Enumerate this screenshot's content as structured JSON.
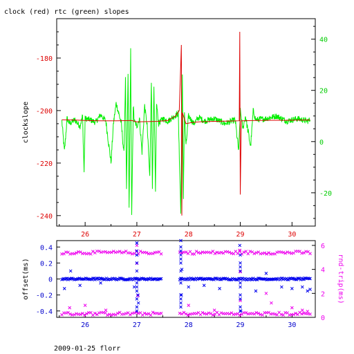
{
  "title": "clock (red) rtc (green) slopes",
  "footer": "2009-01-25 florr",
  "colors": {
    "clock": "#dd0000",
    "rtc": "#00ee00",
    "offset": "#0000ee",
    "rndtrip": "#ee00ee",
    "axis": "#000000",
    "bottom_axis_text": "#0000cc",
    "left_axis_text_top": "#dd0000",
    "right_axis_text_top": "#00cc00"
  },
  "chart_data": [
    {
      "type": "line",
      "title": "clock (red) rtc (green) slopes",
      "xlabel": "",
      "ylabel": "clockslope",
      "y2label": "",
      "xlim": [
        25.45,
        30.45
      ],
      "ylim": [
        -244,
        -165
      ],
      "y2lim": [
        -33,
        48
      ],
      "x_ticks": [
        26,
        27,
        28,
        29,
        30
      ],
      "y_ticks": [
        -240,
        -220,
        -200,
        -180
      ],
      "y2_ticks": [
        -20,
        0,
        20,
        40
      ],
      "series": [
        {
          "axis": "left",
          "color": "#dd0000",
          "points": [
            [
              25.55,
              -203.5
            ],
            [
              25.8,
              -203.6
            ],
            [
              26.0,
              -203.8
            ],
            [
              26.3,
              -203.9
            ],
            [
              26.6,
              -203.9
            ],
            [
              26.9,
              -203.8
            ],
            [
              27.0,
              -204.3
            ],
            [
              27.2,
              -204.2
            ],
            [
              27.4,
              -204.1
            ],
            [
              27.6,
              -203.8
            ],
            [
              27.75,
              -202.0
            ],
            [
              27.82,
              -200.0
            ],
            [
              27.86,
              -175.0
            ],
            [
              27.87,
              -240.0
            ],
            [
              27.88,
              -200.8
            ],
            [
              27.95,
              -205.0
            ],
            [
              28.05,
              -204.6
            ],
            [
              28.2,
              -204.3
            ],
            [
              28.5,
              -204.1
            ],
            [
              28.8,
              -204.0
            ],
            [
              28.98,
              -203.9
            ],
            [
              28.99,
              -170.0
            ],
            [
              29.0,
              -232.0
            ],
            [
              29.02,
              -203.9
            ],
            [
              29.3,
              -203.8
            ],
            [
              29.6,
              -203.7
            ],
            [
              29.9,
              -203.7
            ],
            [
              30.2,
              -203.6
            ],
            [
              30.35,
              -203.6
            ]
          ]
        },
        {
          "axis": "right",
          "color": "#00ee00",
          "points": [
            [
              25.55,
              8.0
            ],
            [
              25.6,
              -4.0
            ],
            [
              25.65,
              9.0
            ],
            [
              25.7,
              7.0
            ],
            [
              25.8,
              8.5
            ],
            [
              25.9,
              6.0
            ],
            [
              25.95,
              10.0
            ],
            [
              25.98,
              -12.0
            ],
            [
              26.0,
              9.0
            ],
            [
              26.1,
              8.5
            ],
            [
              26.2,
              7.5
            ],
            [
              26.3,
              10.5
            ],
            [
              26.4,
              8.0
            ],
            [
              26.5,
              -8.0
            ],
            [
              26.55,
              7.5
            ],
            [
              26.6,
              15.0
            ],
            [
              26.7,
              7.0
            ],
            [
              26.75,
              -5.0
            ],
            [
              26.78,
              24.0
            ],
            [
              26.8,
              -20.0
            ],
            [
              26.83,
              27.0
            ],
            [
              26.85,
              -26.0
            ],
            [
              26.88,
              36.0
            ],
            [
              26.9,
              -30.0
            ],
            [
              26.93,
              14.0
            ],
            [
              26.95,
              8.0
            ],
            [
              27.0,
              6.0
            ],
            [
              27.05,
              9.0
            ],
            [
              27.1,
              -4.0
            ],
            [
              27.15,
              14.0
            ],
            [
              27.2,
              6.0
            ],
            [
              27.25,
              -14.0
            ],
            [
              27.28,
              24.0
            ],
            [
              27.3,
              -17.0
            ],
            [
              27.33,
              20.0
            ],
            [
              27.36,
              -20.0
            ],
            [
              27.38,
              15.0
            ],
            [
              27.42,
              7.0
            ],
            [
              27.5,
              9.0
            ],
            [
              27.6,
              8.0
            ],
            [
              27.7,
              9.5
            ],
            [
              27.8,
              11.0
            ],
            [
              27.85,
              -28.0
            ],
            [
              27.88,
              26.0
            ],
            [
              27.9,
              -22.0
            ],
            [
              27.92,
              12.0
            ],
            [
              27.95,
              -2.0
            ],
            [
              28.0,
              10.0
            ],
            [
              28.1,
              7.0
            ],
            [
              28.2,
              9.5
            ],
            [
              28.3,
              8.0
            ],
            [
              28.5,
              9.0
            ],
            [
              28.7,
              7.0
            ],
            [
              28.9,
              8.5
            ],
            [
              28.97,
              -4.0
            ],
            [
              29.0,
              12.0
            ],
            [
              29.05,
              5.0
            ],
            [
              29.1,
              10.0
            ],
            [
              29.2,
              -2.0
            ],
            [
              29.25,
              12.0
            ],
            [
              29.3,
              8.5
            ],
            [
              29.5,
              9.0
            ],
            [
              29.7,
              10.0
            ],
            [
              29.9,
              8.0
            ],
            [
              30.1,
              9.0
            ],
            [
              30.3,
              8.0
            ],
            [
              30.35,
              8.5
            ]
          ]
        }
      ]
    },
    {
      "type": "scatter",
      "xlabel": "",
      "ylabel": "offset(ms)",
      "y2label": "rnd-trip(ms)",
      "xlim": [
        25.45,
        30.45
      ],
      "ylim": [
        -0.48,
        0.48
      ],
      "y2lim": [
        0,
        6.4
      ],
      "x_ticks": [
        26,
        27,
        28,
        29,
        30
      ],
      "y_ticks": [
        -0.4,
        -0.2,
        0,
        0.2,
        0.4
      ],
      "y2_ticks": [
        0,
        2,
        4,
        6
      ],
      "gap": [
        27.48,
        27.82
      ],
      "series": [
        {
          "name": "offset",
          "axis": "left",
          "marker": "x",
          "color": "#0000ee",
          "baseline": 0.0,
          "outliers": [
            [
              25.6,
              -0.12
            ],
            [
              25.72,
              0.1
            ],
            [
              25.9,
              -0.08
            ],
            [
              26.3,
              -0.05
            ],
            [
              26.95,
              -0.1
            ],
            [
              27.0,
              0.45
            ],
            [
              27.0,
              0.3
            ],
            [
              27.02,
              -0.2
            ],
            [
              27.03,
              -0.3
            ],
            [
              27.85,
              0.48
            ],
            [
              27.85,
              0.3
            ],
            [
              27.86,
              -0.2
            ],
            [
              27.87,
              0.12
            ],
            [
              28.0,
              -0.1
            ],
            [
              28.3,
              -0.08
            ],
            [
              28.6,
              -0.12
            ],
            [
              28.99,
              0.42
            ],
            [
              29.0,
              -0.25
            ],
            [
              29.01,
              -0.4
            ],
            [
              29.3,
              -0.15
            ],
            [
              29.5,
              0.07
            ],
            [
              29.8,
              -0.1
            ],
            [
              30.0,
              -0.12
            ],
            [
              30.2,
              -0.1
            ],
            [
              30.3,
              -0.15
            ],
            [
              30.35,
              -0.13
            ]
          ]
        },
        {
          "name": "rnd-trip",
          "axis": "right",
          "marker": "x",
          "color": "#ee00ee",
          "bands": [
            0.3,
            5.4
          ],
          "outliers": [
            [
              25.7,
              0.8
            ],
            [
              26.0,
              1.0
            ],
            [
              26.4,
              0.6
            ],
            [
              27.0,
              4.5
            ],
            [
              27.0,
              3.2
            ],
            [
              27.0,
              6.0
            ],
            [
              27.02,
              1.8
            ],
            [
              28.0,
              1.0
            ],
            [
              28.5,
              0.6
            ],
            [
              28.99,
              5.6
            ],
            [
              29.0,
              3.8
            ],
            [
              29.0,
              1.4
            ],
            [
              29.5,
              2.0
            ],
            [
              29.6,
              1.2
            ],
            [
              30.0,
              0.8
            ],
            [
              30.2,
              0.6
            ],
            [
              30.3,
              0.5
            ]
          ]
        }
      ]
    }
  ]
}
